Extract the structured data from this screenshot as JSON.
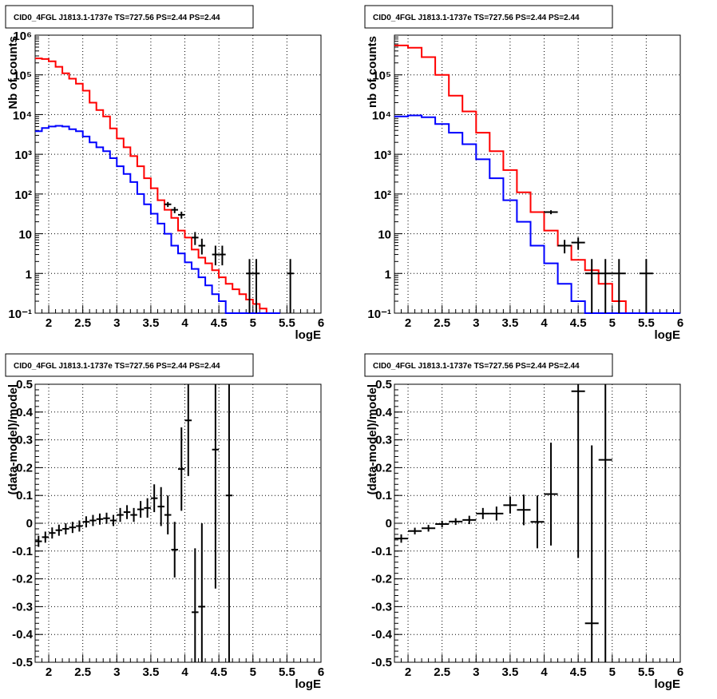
{
  "chart_data": [
    {
      "type": "line",
      "title": "CID0_4FGL J1813.1-1737e TS=727.56 PS=2.44 PS=2.44",
      "xlabel": "logE",
      "ylabel": "Nb of counts",
      "xlim": [
        1.8,
        6.0
      ],
      "ylim": [
        0.1,
        1000000
      ],
      "log_y": true,
      "grid": true,
      "x_ticks": [
        "2",
        "2.5",
        "3",
        "3.5",
        "4",
        "4.5",
        "5",
        "5.5",
        "6"
      ],
      "y_tick_labels": [
        "10⁻¹",
        "1",
        "10",
        "10²",
        "10³",
        "10⁴",
        "10⁵",
        "10⁶"
      ],
      "series": [
        {
          "color": "#ff0000",
          "style": "step",
          "edges": [
            1.8,
            1.9,
            2.0,
            2.1,
            2.2,
            2.3,
            2.4,
            2.5,
            2.6,
            2.7,
            2.8,
            2.9,
            3.0,
            3.1,
            3.2,
            3.3,
            3.4,
            3.5,
            3.6,
            3.7,
            3.8,
            3.9,
            4.0,
            4.1,
            4.2,
            4.3,
            4.4,
            4.5,
            4.6,
            4.7,
            4.8,
            4.9,
            5.0,
            5.1,
            5.2,
            5.3,
            5.4
          ],
          "values": [
            260000,
            250000,
            220000,
            160000,
            110000,
            80000,
            60000,
            40000,
            20000,
            13000,
            9000,
            4500,
            2500,
            1500,
            900,
            500,
            250,
            140,
            70,
            40,
            25,
            12,
            8,
            4,
            2.5,
            1.8,
            1.2,
            0.8,
            0.55,
            0.4,
            0.3,
            0.22,
            0.17,
            0.13,
            0.1,
            0.1
          ]
        },
        {
          "color": "#0000ff",
          "style": "step",
          "edges": [
            1.8,
            1.9,
            2.0,
            2.1,
            2.2,
            2.3,
            2.4,
            2.5,
            2.6,
            2.7,
            2.8,
            2.9,
            3.0,
            3.1,
            3.2,
            3.3,
            3.4,
            3.5,
            3.6,
            3.7,
            3.8,
            3.9,
            4.0,
            4.1,
            4.2,
            4.3,
            4.4,
            4.5,
            4.6,
            4.7,
            4.8,
            4.9,
            5.0,
            5.1,
            5.2,
            5.3,
            5.4
          ],
          "values": [
            3800,
            4600,
            5000,
            5200,
            5000,
            4300,
            3800,
            2800,
            2000,
            1500,
            1200,
            800,
            500,
            320,
            200,
            100,
            55,
            32,
            18,
            10,
            5,
            3.2,
            1.9,
            1.3,
            0.8,
            0.5,
            0.3,
            0.2,
            0.1,
            0.1,
            0.1,
            0.1,
            0.1,
            0.1,
            0.1,
            0.1
          ]
        }
      ],
      "data_points": [
        {
          "x": 3.75,
          "y": 55,
          "ylo": 47,
          "yhi": 63,
          "xerr": 0.05
        },
        {
          "x": 3.85,
          "y": 40,
          "ylo": 33,
          "yhi": 47,
          "xerr": 0.05
        },
        {
          "x": 3.95,
          "y": 30,
          "ylo": 24,
          "yhi": 36,
          "xerr": 0.05
        },
        {
          "x": 4.15,
          "y": 8,
          "ylo": 5.2,
          "yhi": 11,
          "xerr": 0.05
        },
        {
          "x": 4.25,
          "y": 5,
          "ylo": 3,
          "yhi": 7.5,
          "xerr": 0.05
        },
        {
          "x": 4.45,
          "y": 3,
          "ylo": 1.6,
          "yhi": 5,
          "xerr": 0.05
        },
        {
          "x": 4.55,
          "y": 3,
          "ylo": 1.6,
          "yhi": 5,
          "xerr": 0.05
        },
        {
          "x": 4.95,
          "y": 1,
          "ylo": 0.1,
          "yhi": 2.3,
          "xerr": 0.05
        },
        {
          "x": 5.05,
          "y": 1,
          "ylo": 0.1,
          "yhi": 2.3,
          "xerr": 0.05
        },
        {
          "x": 5.55,
          "y": 1,
          "ylo": 0.1,
          "yhi": 2.3,
          "xerr": 0.05
        }
      ]
    },
    {
      "type": "line",
      "title": "CID0_4FGL J1813.1-1737e TS=727.56 PS=2.44 PS=2.44",
      "xlabel": "logE",
      "ylabel": "nb of counts",
      "xlim": [
        1.8,
        6.0
      ],
      "ylim": [
        0.1,
        1000000
      ],
      "log_y": true,
      "grid": true,
      "x_ticks": [
        "2",
        "2.5",
        "3",
        "3.5",
        "4",
        "4.5",
        "5",
        "5.5",
        "6"
      ],
      "y_tick_labels": [
        "10⁻¹",
        "1",
        "10",
        "10²",
        "10³",
        "10⁴",
        "10⁵"
      ],
      "series": [
        {
          "color": "#ff0000",
          "style": "step",
          "edges": [
            1.8,
            2.0,
            2.2,
            2.4,
            2.6,
            2.8,
            3.0,
            3.2,
            3.4,
            3.6,
            3.8,
            4.0,
            4.2,
            4.4,
            4.6,
            4.8,
            5.0,
            5.2,
            5.4,
            5.6,
            5.8,
            6.0
          ],
          "values": [
            550000,
            480000,
            280000,
            100000,
            30000,
            12000,
            3500,
            1200,
            400,
            110,
            35,
            12,
            5,
            2.2,
            1.2,
            0.55,
            0.2,
            0.1,
            0.1,
            0.1,
            0.1
          ]
        },
        {
          "color": "#0000ff",
          "style": "step",
          "edges": [
            1.8,
            2.0,
            2.2,
            2.4,
            2.6,
            2.8,
            3.0,
            3.2,
            3.4,
            3.6,
            3.8,
            4.0,
            4.2,
            4.4,
            4.6,
            4.8,
            5.0,
            5.2,
            5.4,
            5.6,
            5.8,
            6.0
          ],
          "values": [
            9000,
            9500,
            8600,
            5800,
            3500,
            1800,
            750,
            250,
            70,
            20,
            5,
            1.8,
            0.55,
            0.2,
            0.1,
            0.1,
            0.1,
            0.1,
            0.1,
            0.1,
            0.1
          ]
        }
      ],
      "data_points": [
        {
          "x": 4.1,
          "y": 35,
          "ylo": 31,
          "yhi": 39,
          "xerr": 0.1
        },
        {
          "x": 4.3,
          "y": 5,
          "ylo": 3.2,
          "yhi": 7,
          "xerr": 0.1
        },
        {
          "x": 4.5,
          "y": 6,
          "ylo": 4,
          "yhi": 8,
          "xerr": 0.1
        },
        {
          "x": 4.7,
          "y": 1,
          "ylo": 0.1,
          "yhi": 2.3,
          "xerr": 0.1
        },
        {
          "x": 4.9,
          "y": 1,
          "ylo": 0.1,
          "yhi": 2.3,
          "xerr": 0.1
        },
        {
          "x": 5.1,
          "y": 1,
          "ylo": 0.1,
          "yhi": 2.3,
          "xerr": 0.1
        },
        {
          "x": 5.5,
          "y": 1,
          "ylo": 0.1,
          "yhi": 2.3,
          "xerr": 0.1
        }
      ]
    },
    {
      "type": "scatter",
      "title": "CID0_4FGL J1813.1-1737e TS=727.56 PS=2.44 PS=2.44",
      "xlabel": "logE",
      "ylabel": "(data-model)/model",
      "xlim": [
        1.8,
        6.0
      ],
      "ylim": [
        -0.5,
        0.5
      ],
      "grid": true,
      "x_ticks": [
        "2",
        "2.5",
        "3",
        "3.5",
        "4",
        "4.5",
        "5",
        "5.5",
        "6"
      ],
      "y_ticks": [
        "0.5",
        "0.4",
        "0.3",
        "0.2",
        "0.1",
        "0",
        "-0.1",
        "-0.2",
        "-0.3",
        "-0.4",
        "-0.5"
      ],
      "data_points": [
        {
          "x": 1.85,
          "y": -0.065,
          "err": 0.02,
          "xerr": 0.05
        },
        {
          "x": 1.95,
          "y": -0.05,
          "err": 0.02,
          "xerr": 0.05
        },
        {
          "x": 2.05,
          "y": -0.035,
          "err": 0.02,
          "xerr": 0.05
        },
        {
          "x": 2.15,
          "y": -0.025,
          "err": 0.02,
          "xerr": 0.05
        },
        {
          "x": 2.25,
          "y": -0.02,
          "err": 0.02,
          "xerr": 0.05
        },
        {
          "x": 2.35,
          "y": -0.015,
          "err": 0.02,
          "xerr": 0.05
        },
        {
          "x": 2.45,
          "y": -0.01,
          "err": 0.02,
          "xerr": 0.05
        },
        {
          "x": 2.55,
          "y": 0.005,
          "err": 0.02,
          "xerr": 0.05
        },
        {
          "x": 2.65,
          "y": 0.01,
          "err": 0.02,
          "xerr": 0.05
        },
        {
          "x": 2.75,
          "y": 0.015,
          "err": 0.02,
          "xerr": 0.05
        },
        {
          "x": 2.85,
          "y": 0.018,
          "err": 0.02,
          "xerr": 0.05
        },
        {
          "x": 2.95,
          "y": 0.01,
          "err": 0.02,
          "xerr": 0.05
        },
        {
          "x": 3.05,
          "y": 0.03,
          "err": 0.025,
          "xerr": 0.05
        },
        {
          "x": 3.15,
          "y": 0.04,
          "err": 0.025,
          "xerr": 0.05
        },
        {
          "x": 3.25,
          "y": 0.03,
          "err": 0.025,
          "xerr": 0.05
        },
        {
          "x": 3.35,
          "y": 0.05,
          "err": 0.03,
          "xerr": 0.05
        },
        {
          "x": 3.45,
          "y": 0.055,
          "err": 0.035,
          "xerr": 0.05
        },
        {
          "x": 3.55,
          "y": 0.09,
          "err": 0.05,
          "xerr": 0.05
        },
        {
          "x": 3.65,
          "y": 0.06,
          "err": 0.07,
          "xerr": 0.05
        },
        {
          "x": 3.75,
          "y": 0.03,
          "err": 0.07,
          "xerr": 0.05
        },
        {
          "x": 3.85,
          "y": -0.095,
          "err": 0.1,
          "xerr": 0.05
        },
        {
          "x": 3.95,
          "y": 0.195,
          "err": 0.15,
          "xerr": 0.05
        },
        {
          "x": 4.05,
          "y": 0.37,
          "err": 0.2,
          "xerr": 0.05
        },
        {
          "x": 4.15,
          "y": -0.32,
          "err": 0.23,
          "xerr": 0.05
        },
        {
          "x": 4.25,
          "y": -0.3,
          "err": 0.3,
          "xerr": 0.05
        },
        {
          "x": 4.45,
          "y": 0.265,
          "err": 0.5,
          "xerr": 0.05
        },
        {
          "x": 4.65,
          "y": 0.1,
          "err": 0.9,
          "xerr": 0.05
        }
      ]
    },
    {
      "type": "scatter",
      "title": "CID0_4FGL J1813.1-1737e TS=727.56 PS=2.44 PS=2.44",
      "xlabel": "logE",
      "ylabel": "(data-model)/model",
      "xlim": [
        1.8,
        6.0
      ],
      "ylim": [
        -0.5,
        0.5
      ],
      "grid": true,
      "x_ticks": [
        "2",
        "2.5",
        "3",
        "3.5",
        "4",
        "4.5",
        "5",
        "5.5",
        "6"
      ],
      "y_ticks": [
        "0.5",
        "0.4",
        "0.3",
        "0.2",
        "0.1",
        "0",
        "-0.1",
        "-0.2",
        "-0.3",
        "-0.4",
        "-0.5"
      ],
      "data_points": [
        {
          "x": 1.9,
          "y": -0.055,
          "err": 0.015,
          "xerr": 0.1
        },
        {
          "x": 2.1,
          "y": -0.028,
          "err": 0.012,
          "xerr": 0.1
        },
        {
          "x": 2.3,
          "y": -0.018,
          "err": 0.012,
          "xerr": 0.1
        },
        {
          "x": 2.5,
          "y": -0.003,
          "err": 0.012,
          "xerr": 0.1
        },
        {
          "x": 2.7,
          "y": 0.006,
          "err": 0.012,
          "xerr": 0.1
        },
        {
          "x": 2.9,
          "y": 0.012,
          "err": 0.015,
          "xerr": 0.1
        },
        {
          "x": 3.1,
          "y": 0.035,
          "err": 0.02,
          "xerr": 0.1
        },
        {
          "x": 3.3,
          "y": 0.035,
          "err": 0.025,
          "xerr": 0.1
        },
        {
          "x": 3.5,
          "y": 0.065,
          "err": 0.03,
          "xerr": 0.1
        },
        {
          "x": 3.7,
          "y": 0.048,
          "err": 0.055,
          "xerr": 0.1
        },
        {
          "x": 3.9,
          "y": 0.005,
          "err": 0.095,
          "xerr": 0.1
        },
        {
          "x": 4.1,
          "y": 0.105,
          "err": 0.185,
          "xerr": 0.1
        },
        {
          "x": 4.5,
          "y": 0.475,
          "err": 0.6,
          "xerr": 0.1
        },
        {
          "x": 4.7,
          "y": -0.36,
          "err": 0.64,
          "xerr": 0.1
        },
        {
          "x": 4.9,
          "y": 0.228,
          "err": 0.9,
          "xerr": 0.1
        }
      ]
    }
  ]
}
